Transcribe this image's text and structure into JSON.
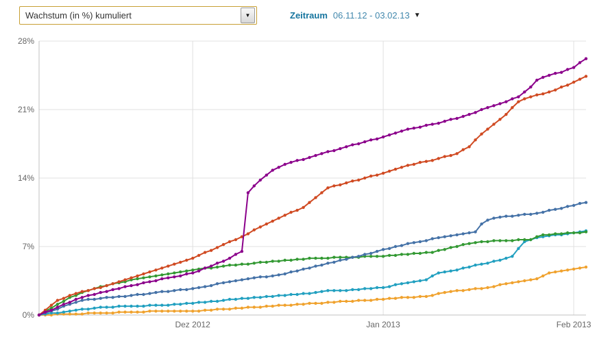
{
  "header": {
    "metric_select_value": "Wachstum (in %) kumuliert",
    "zeitraum_label": "Zeitraum",
    "zeitraum_value": "06.11.12 - 03.02.13"
  },
  "icons": {
    "select_arrow": "▼",
    "caret_down": "▼"
  },
  "colors": {
    "select_border": "#c79f34",
    "zeitraum_label": "#15749e",
    "zeitraum_value": "#4288ad",
    "grid": "#e0e0e0",
    "axis": "#c0c0c0",
    "tick_text": "#666666"
  },
  "chart_data": {
    "type": "line",
    "title": "",
    "xlabel": "",
    "ylabel": "",
    "grid": true,
    "legend": "none",
    "markers": true,
    "x_axis": {
      "start_date": "06.11.12",
      "end_date": "03.02.13",
      "unit": "day",
      "labels": [
        "Dez 2012",
        "Jan 2013",
        "Feb 2013"
      ],
      "label_days": [
        25,
        56,
        87
      ]
    },
    "y_axis": {
      "min": 0,
      "max": 28,
      "ticks": [
        "0%",
        "7%",
        "14%",
        "21%",
        "28%"
      ],
      "tick_values": [
        0,
        7,
        14,
        21,
        28
      ]
    },
    "series": [
      {
        "name": "orange",
        "color": "#f0a22e",
        "values": [
          0,
          0,
          0,
          0.1,
          0.1,
          0.1,
          0.1,
          0.1,
          0.2,
          0.2,
          0.2,
          0.2,
          0.2,
          0.3,
          0.3,
          0.3,
          0.3,
          0.3,
          0.4,
          0.4,
          0.4,
          0.4,
          0.4,
          0.4,
          0.4,
          0.4,
          0.4,
          0.5,
          0.5,
          0.6,
          0.6,
          0.6,
          0.7,
          0.7,
          0.8,
          0.8,
          0.8,
          0.9,
          0.9,
          1.0,
          1.0,
          1.0,
          1.1,
          1.1,
          1.2,
          1.2,
          1.2,
          1.3,
          1.3,
          1.4,
          1.4,
          1.4,
          1.5,
          1.5,
          1.5,
          1.6,
          1.6,
          1.7,
          1.7,
          1.8,
          1.8,
          1.8,
          1.9,
          1.9,
          2.0,
          2.2,
          2.3,
          2.4,
          2.5,
          2.5,
          2.6,
          2.7,
          2.7,
          2.8,
          2.9,
          3.1,
          3.2,
          3.3,
          3.4,
          3.5,
          3.6,
          3.7,
          4.0,
          4.3,
          4.4,
          4.5,
          4.6,
          4.7,
          4.8,
          4.9
        ]
      },
      {
        "name": "teal",
        "color": "#22a0c0",
        "values": [
          0,
          0.1,
          0.2,
          0.2,
          0.3,
          0.4,
          0.5,
          0.6,
          0.6,
          0.7,
          0.8,
          0.8,
          0.8,
          0.9,
          0.9,
          0.9,
          0.9,
          0.9,
          1.0,
          1.0,
          1.0,
          1.0,
          1.1,
          1.1,
          1.2,
          1.2,
          1.3,
          1.3,
          1.4,
          1.4,
          1.5,
          1.6,
          1.6,
          1.7,
          1.7,
          1.8,
          1.8,
          1.9,
          1.9,
          2.0,
          2.0,
          2.1,
          2.1,
          2.2,
          2.2,
          2.3,
          2.4,
          2.5,
          2.5,
          2.5,
          2.5,
          2.6,
          2.6,
          2.7,
          2.7,
          2.8,
          2.8,
          2.9,
          3.1,
          3.2,
          3.3,
          3.4,
          3.5,
          3.6,
          4.0,
          4.3,
          4.4,
          4.5,
          4.6,
          4.8,
          4.9,
          5.1,
          5.2,
          5.3,
          5.5,
          5.6,
          5.8,
          6.0,
          6.8,
          7.5,
          7.7,
          7.9,
          8.0,
          8.1,
          8.2,
          8.2,
          8.3,
          8.4,
          8.5,
          8.6
        ]
      },
      {
        "name": "green",
        "color": "#339933",
        "values": [
          0,
          0.4,
          0.7,
          1.1,
          1.4,
          1.8,
          2.0,
          2.3,
          2.5,
          2.7,
          2.9,
          3.0,
          3.2,
          3.3,
          3.4,
          3.6,
          3.7,
          3.8,
          3.9,
          4.0,
          4.1,
          4.2,
          4.3,
          4.4,
          4.5,
          4.6,
          4.7,
          4.8,
          4.8,
          4.9,
          5.0,
          5.1,
          5.1,
          5.2,
          5.2,
          5.3,
          5.4,
          5.4,
          5.5,
          5.5,
          5.6,
          5.6,
          5.7,
          5.7,
          5.8,
          5.8,
          5.8,
          5.8,
          5.9,
          5.9,
          5.9,
          5.9,
          5.9,
          6.0,
          6.0,
          6.0,
          6.0,
          6.1,
          6.1,
          6.2,
          6.2,
          6.3,
          6.3,
          6.4,
          6.4,
          6.6,
          6.7,
          6.9,
          7.0,
          7.2,
          7.3,
          7.4,
          7.5,
          7.5,
          7.6,
          7.6,
          7.6,
          7.6,
          7.7,
          7.7,
          7.7,
          8.0,
          8.2,
          8.2,
          8.3,
          8.3,
          8.4,
          8.4,
          8.4,
          8.5
        ]
      },
      {
        "name": "blue",
        "color": "#4572a7",
        "values": [
          0,
          0.2,
          0.4,
          0.6,
          0.9,
          1.1,
          1.3,
          1.5,
          1.6,
          1.6,
          1.7,
          1.8,
          1.8,
          1.9,
          1.9,
          2.0,
          2.1,
          2.1,
          2.2,
          2.3,
          2.4,
          2.4,
          2.5,
          2.6,
          2.6,
          2.7,
          2.8,
          2.9,
          3.0,
          3.2,
          3.3,
          3.4,
          3.5,
          3.6,
          3.7,
          3.8,
          3.9,
          3.9,
          4.0,
          4.1,
          4.2,
          4.4,
          4.5,
          4.7,
          4.8,
          5.0,
          5.1,
          5.3,
          5.4,
          5.6,
          5.7,
          5.9,
          6.0,
          6.2,
          6.3,
          6.5,
          6.7,
          6.8,
          7.0,
          7.1,
          7.3,
          7.4,
          7.5,
          7.6,
          7.8,
          7.9,
          8.0,
          8.1,
          8.2,
          8.3,
          8.4,
          8.5,
          9.3,
          9.7,
          9.9,
          10.0,
          10.1,
          10.1,
          10.2,
          10.3,
          10.3,
          10.4,
          10.5,
          10.7,
          10.8,
          10.9,
          11.1,
          11.2,
          11.4,
          11.5
        ]
      },
      {
        "name": "red",
        "color": "#d04a22",
        "values": [
          0,
          0.5,
          1.0,
          1.5,
          1.7,
          2.0,
          2.2,
          2.4,
          2.5,
          2.7,
          2.8,
          3.0,
          3.2,
          3.4,
          3.6,
          3.8,
          4.0,
          4.2,
          4.4,
          4.6,
          4.8,
          5.0,
          5.2,
          5.4,
          5.6,
          5.8,
          6.1,
          6.4,
          6.6,
          6.9,
          7.2,
          7.5,
          7.7,
          8.0,
          8.3,
          8.7,
          9.0,
          9.3,
          9.6,
          9.9,
          10.2,
          10.5,
          10.7,
          11.0,
          11.5,
          12.0,
          12.5,
          13.0,
          13.2,
          13.3,
          13.5,
          13.7,
          13.8,
          14.0,
          14.2,
          14.3,
          14.5,
          14.7,
          14.9,
          15.1,
          15.3,
          15.4,
          15.6,
          15.7,
          15.8,
          16.0,
          16.2,
          16.3,
          16.5,
          16.9,
          17.2,
          17.9,
          18.5,
          19.0,
          19.5,
          20.0,
          20.5,
          21.2,
          21.8,
          22.1,
          22.3,
          22.5,
          22.6,
          22.8,
          23.0,
          23.3,
          23.5,
          23.8,
          24.1,
          24.4
        ]
      },
      {
        "name": "purple",
        "color": "#8B008B",
        "values": [
          0,
          0.3,
          0.5,
          0.8,
          1.1,
          1.3,
          1.6,
          1.8,
          2.0,
          2.1,
          2.3,
          2.4,
          2.6,
          2.7,
          2.9,
          3.0,
          3.1,
          3.3,
          3.4,
          3.5,
          3.7,
          3.8,
          3.9,
          4.0,
          4.2,
          4.3,
          4.5,
          4.8,
          5.0,
          5.3,
          5.5,
          5.8,
          6.2,
          6.5,
          12.5,
          13.2,
          13.8,
          14.3,
          14.8,
          15.1,
          15.4,
          15.6,
          15.8,
          15.9,
          16.1,
          16.3,
          16.5,
          16.7,
          16.8,
          17.0,
          17.2,
          17.4,
          17.5,
          17.7,
          17.9,
          18.0,
          18.2,
          18.4,
          18.6,
          18.8,
          19.0,
          19.1,
          19.2,
          19.4,
          19.5,
          19.6,
          19.8,
          20.0,
          20.1,
          20.3,
          20.5,
          20.7,
          21.0,
          21.2,
          21.4,
          21.6,
          21.8,
          22.1,
          22.3,
          22.8,
          23.3,
          24.0,
          24.3,
          24.5,
          24.7,
          24.8,
          25.1,
          25.3,
          25.8,
          26.2
        ]
      }
    ]
  }
}
